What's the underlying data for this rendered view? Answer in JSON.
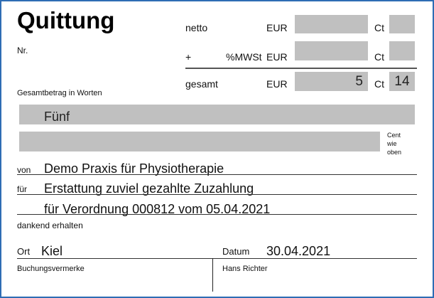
{
  "title": "Quittung",
  "nr_label": "Nr.",
  "amounts": {
    "netto": {
      "label": "netto",
      "currency": "EUR",
      "cent_label": "Ct",
      "eur": "",
      "ct": ""
    },
    "mwst": {
      "prefix": "+",
      "label": "%MWSt",
      "currency": "EUR",
      "cent_label": "Ct",
      "eur": "",
      "ct": ""
    },
    "gesamt": {
      "label": "gesamt",
      "currency": "EUR",
      "cent_label": "Ct",
      "eur": "5",
      "ct": "14"
    }
  },
  "words_label": "Gesamtbetrag in Worten",
  "words_value": "Fünf",
  "words_value2": "",
  "cent_note": [
    "Cent",
    "wie",
    "oben"
  ],
  "von": {
    "label": "von",
    "value": "Demo Praxis für Physiotherapie"
  },
  "fuer": {
    "label": "für",
    "value": "Erstattung zuviel gezahlte Zuzahlung",
    "value2": "für Verordnung 000812 vom 05.04.2021"
  },
  "received": "dankend erhalten",
  "ort": {
    "label": "Ort",
    "value": "Kiel"
  },
  "datum": {
    "label": "Datum",
    "value": "30.04.2021"
  },
  "booking_label": "Buchungsvermerke",
  "signer": "Hans Richter"
}
